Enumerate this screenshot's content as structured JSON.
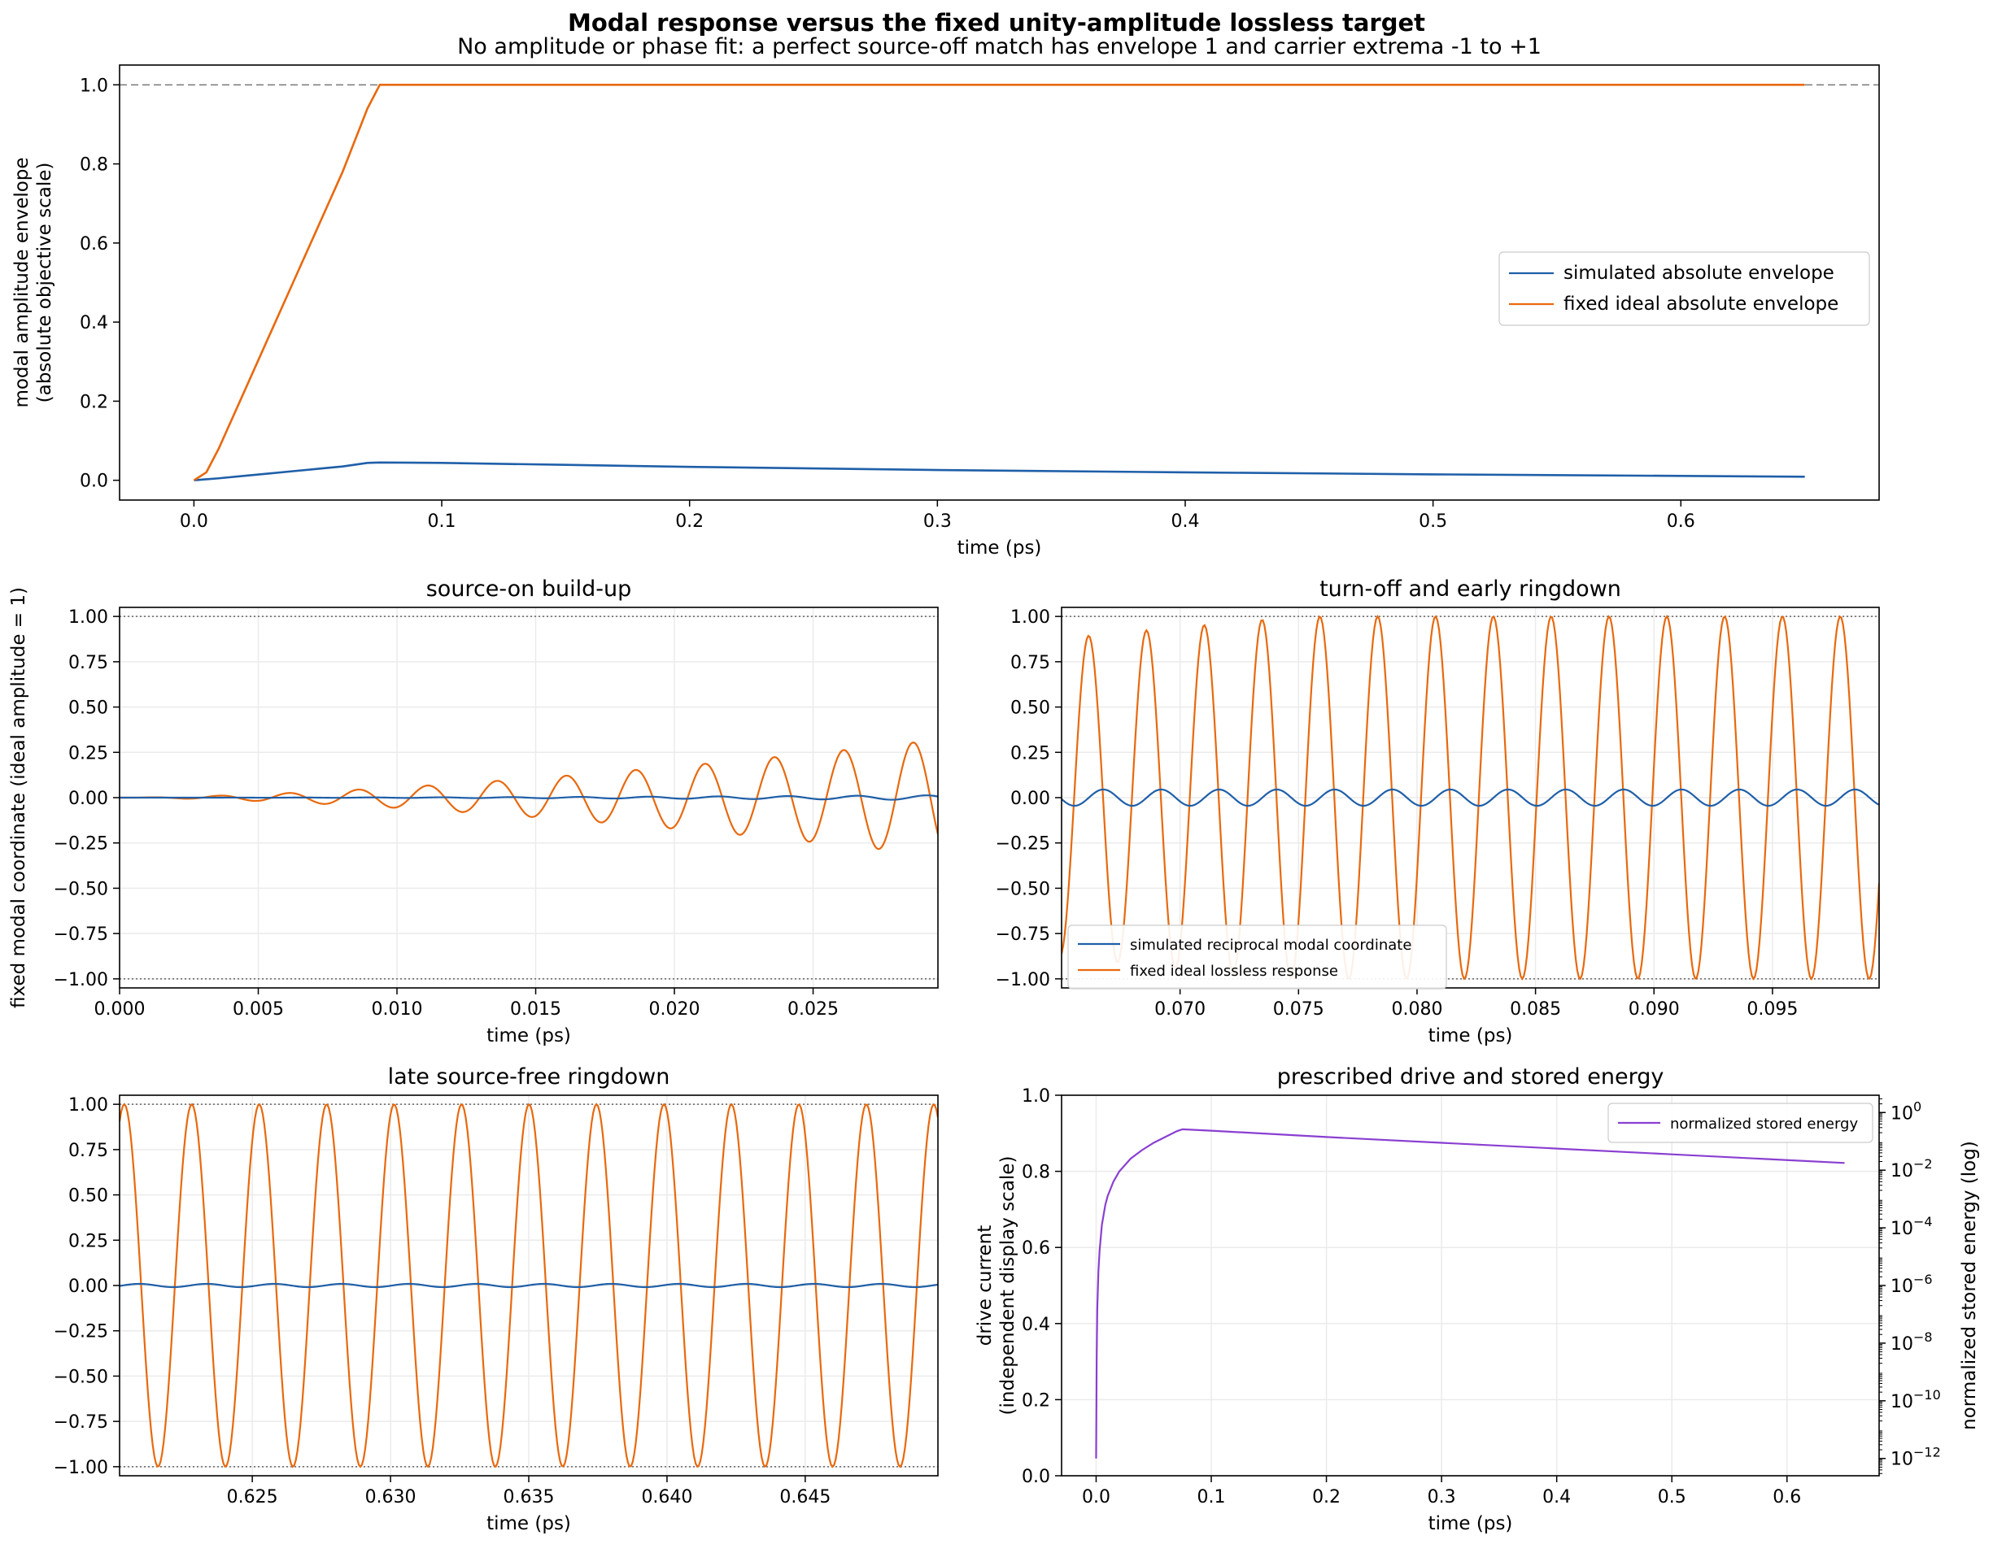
{
  "figure": {
    "title": "Modal response versus the fixed unity-amplitude lossless target"
  },
  "chart_data": [
    {
      "id": "envelope",
      "type": "line",
      "title": "No amplitude or phase fit: a perfect source-off match has envelope 1 and carrier extrema -1 to +1",
      "xlabel": "time (ps)",
      "ylabel": "modal amplitude envelope\n(absolute objective scale)",
      "xlim": [
        -0.03,
        0.68
      ],
      "ylim": [
        -0.05,
        1.05
      ],
      "xticks": [
        0.0,
        0.1,
        0.2,
        0.3,
        0.4,
        0.5,
        0.6
      ],
      "xticklabels": [
        "0.0",
        "0.1",
        "0.2",
        "0.3",
        "0.4",
        "0.5",
        "0.6"
      ],
      "yticks": [
        0.0,
        0.2,
        0.4,
        0.6,
        0.8,
        1.0
      ],
      "yticklabels": [
        "0.0",
        "0.2",
        "0.4",
        "0.6",
        "0.8",
        "1.0"
      ],
      "grid": false,
      "reference_lines": [
        {
          "y": 1.0,
          "style": "dashed"
        }
      ],
      "legend": "center-right",
      "series": [
        {
          "name": "simulated absolute envelope",
          "color": "#1f5fa8",
          "x": [
            0.0,
            0.01,
            0.02,
            0.03,
            0.04,
            0.05,
            0.06,
            0.07,
            0.075,
            0.1,
            0.15,
            0.2,
            0.3,
            0.4,
            0.5,
            0.6,
            0.65
          ],
          "y": [
            0.0,
            0.005,
            0.011,
            0.017,
            0.023,
            0.029,
            0.035,
            0.044,
            0.045,
            0.044,
            0.039,
            0.034,
            0.026,
            0.02,
            0.015,
            0.011,
            0.009
          ]
        },
        {
          "name": "fixed ideal absolute envelope",
          "color": "#e8690e",
          "x": [
            0.0,
            0.005,
            0.01,
            0.02,
            0.03,
            0.04,
            0.05,
            0.06,
            0.07,
            0.075,
            0.1,
            0.2,
            0.3,
            0.4,
            0.5,
            0.6,
            0.65
          ],
          "y": [
            0.0,
            0.02,
            0.08,
            0.22,
            0.36,
            0.5,
            0.64,
            0.78,
            0.94,
            1.0,
            1.0,
            1.0,
            1.0,
            1.0,
            1.0,
            1.0,
            1.0
          ]
        }
      ]
    },
    {
      "id": "buildup",
      "type": "line",
      "title": "source-on build-up",
      "xlabel": "time (ps)",
      "ylabel": "fixed modal coordinate (ideal amplitude = 1)",
      "xlim": [
        0.0,
        0.0295
      ],
      "ylim": [
        -1.05,
        1.05
      ],
      "xticks": [
        0.0,
        0.005,
        0.01,
        0.015,
        0.02,
        0.025
      ],
      "xticklabels": [
        "0.000",
        "0.005",
        "0.010",
        "0.015",
        "0.020",
        "0.025"
      ],
      "yticks": [
        -1.0,
        -0.75,
        -0.5,
        -0.25,
        0.0,
        0.25,
        0.5,
        0.75,
        1.0
      ],
      "yticklabels": [
        "−1.00",
        "−0.75",
        "−0.50",
        "−0.25",
        "0.00",
        "0.25",
        "0.50",
        "0.75",
        "1.00"
      ],
      "grid": true,
      "reference_lines": [
        {
          "y": 1.0,
          "style": "dotted"
        },
        {
          "y": -1.0,
          "style": "dotted"
        }
      ],
      "series_model": {
        "carrier_period_ps": 0.0025,
        "simulated": {
          "color": "#1f5fa8",
          "amplitude_at_end": 0.013
        },
        "ideal": {
          "color": "#e8690e",
          "envelope": "ramp",
          "amplitude_at_end": 0.32
        }
      }
    },
    {
      "id": "turnoff",
      "type": "line",
      "title": "turn-off and early ringdown",
      "xlabel": "time (ps)",
      "ylabel": "",
      "xlim": [
        0.065,
        0.0995
      ],
      "ylim": [
        -1.05,
        1.05
      ],
      "xticks": [
        0.07,
        0.075,
        0.08,
        0.085,
        0.09,
        0.095
      ],
      "xticklabels": [
        "0.070",
        "0.075",
        "0.080",
        "0.085",
        "0.090",
        "0.095"
      ],
      "yticks": [
        -1.0,
        -0.75,
        -0.5,
        -0.25,
        0.0,
        0.25,
        0.5,
        0.75,
        1.0
      ],
      "yticklabels": [
        "−1.00",
        "−0.75",
        "−0.50",
        "−0.25",
        "0.00",
        "0.25",
        "0.50",
        "0.75",
        "1.00"
      ],
      "grid": true,
      "reference_lines": [
        {
          "y": 1.0,
          "style": "dotted"
        },
        {
          "y": -1.0,
          "style": "dotted"
        }
      ],
      "legend": "lower-left",
      "series": [
        {
          "name": "simulated reciprocal modal coordinate",
          "color": "#1f5fa8",
          "amplitude": 0.045
        },
        {
          "name": "fixed ideal lossless response",
          "color": "#e8690e",
          "amplitude": 1.0
        }
      ],
      "series_model": {
        "carrier_period_ps": 0.00244
      }
    },
    {
      "id": "late",
      "type": "line",
      "title": "late source-free ringdown",
      "xlabel": "time (ps)",
      "ylabel": "",
      "xlim": [
        0.6202,
        0.6498
      ],
      "ylim": [
        -1.05,
        1.05
      ],
      "xticks": [
        0.625,
        0.63,
        0.635,
        0.64,
        0.645
      ],
      "xticklabels": [
        "0.625",
        "0.630",
        "0.635",
        "0.640",
        "0.645"
      ],
      "yticks": [
        -1.0,
        -0.75,
        -0.5,
        -0.25,
        0.0,
        0.25,
        0.5,
        0.75,
        1.0
      ],
      "yticklabels": [
        "−1.00",
        "−0.75",
        "−0.50",
        "−0.25",
        "0.00",
        "0.25",
        "0.50",
        "0.75",
        "1.00"
      ],
      "grid": true,
      "reference_lines": [
        {
          "y": 1.0,
          "style": "dotted"
        },
        {
          "y": -1.0,
          "style": "dotted"
        }
      ],
      "series_model": {
        "carrier_period_ps": 0.00244,
        "simulated": {
          "color": "#1f5fa8",
          "amplitude": 0.009
        },
        "ideal": {
          "color": "#e8690e",
          "amplitude": 1.0
        }
      }
    },
    {
      "id": "drive",
      "type": "line",
      "title": "prescribed drive and stored energy",
      "xlabel": "time (ps)",
      "ylabel": "drive current\n(independent display scale)",
      "y2label": "normalized stored energy (log)",
      "xlim": [
        -0.03,
        0.68
      ],
      "ylim": [
        0.0,
        1.0
      ],
      "y2lim_log10": [
        -12.6,
        0.6
      ],
      "y2scale": "log",
      "xticks": [
        0.0,
        0.1,
        0.2,
        0.3,
        0.4,
        0.5,
        0.6
      ],
      "xticklabels": [
        "0.0",
        "0.1",
        "0.2",
        "0.3",
        "0.4",
        "0.5",
        "0.6"
      ],
      "yticks": [
        0.0,
        0.2,
        0.4,
        0.6,
        0.8,
        1.0
      ],
      "yticklabels": [
        "0.0",
        "0.2",
        "0.4",
        "0.6",
        "0.8",
        "1.0"
      ],
      "y2ticks_log10": [
        0,
        -2,
        -4,
        -6,
        -8,
        -10,
        -12
      ],
      "y2tickbase": "10",
      "y2tickexponents": [
        "0",
        "−2",
        "−4",
        "−6",
        "−8",
        "−10",
        "−12"
      ],
      "grid": true,
      "legend": "top-right",
      "series": [
        {
          "name": "normalized stored energy",
          "color": "#8a3fd1",
          "axis": "right",
          "x": [
            0.0,
            0.0005,
            0.001,
            0.002,
            0.003,
            0.005,
            0.008,
            0.01,
            0.015,
            0.02,
            0.03,
            0.04,
            0.05,
            0.06,
            0.07,
            0.075,
            0.1,
            0.2,
            0.3,
            0.4,
            0.5,
            0.6,
            0.65
          ],
          "log10y": [
            -12.0,
            -8.5,
            -6.8,
            -5.5,
            -4.8,
            -3.9,
            -3.2,
            -2.9,
            -2.4,
            -2.05,
            -1.6,
            -1.3,
            -1.05,
            -0.85,
            -0.65,
            -0.58,
            -0.63,
            -0.85,
            -1.05,
            -1.25,
            -1.45,
            -1.65,
            -1.75
          ]
        }
      ]
    }
  ]
}
